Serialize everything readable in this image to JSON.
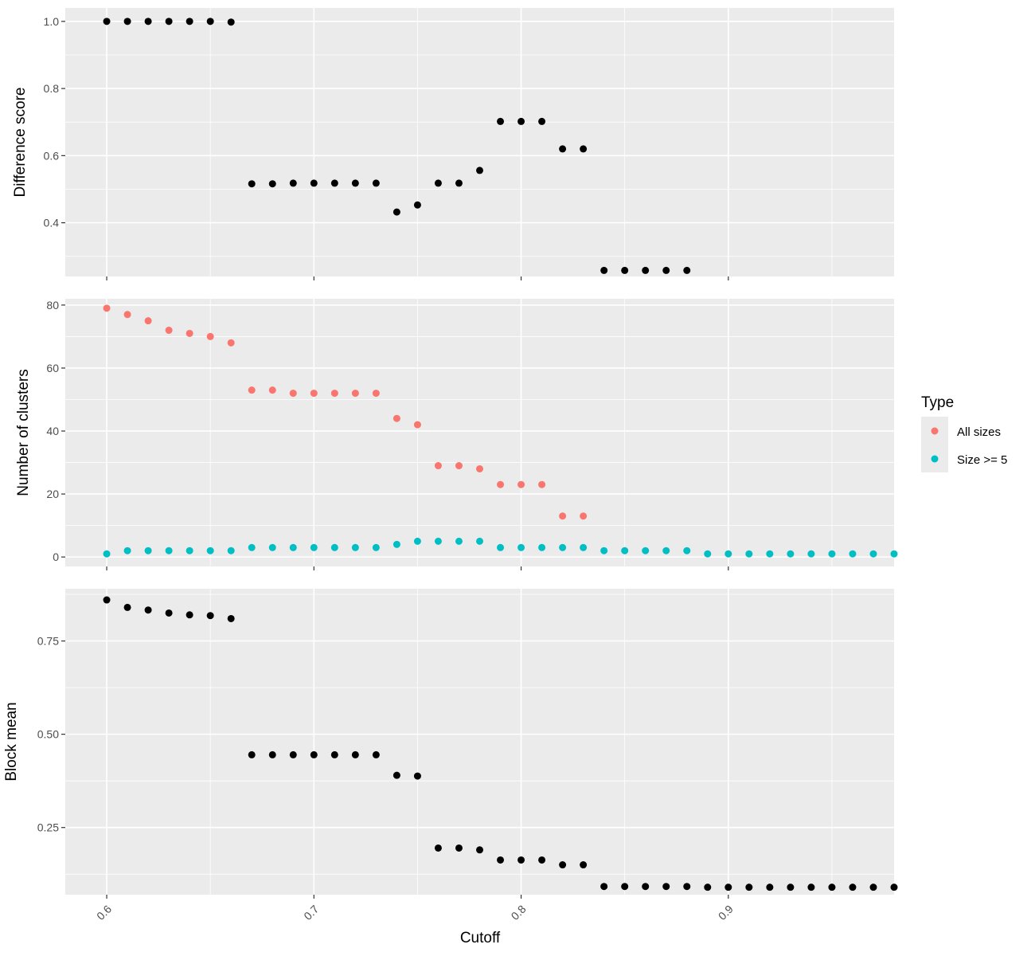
{
  "chart_data": {
    "type": "scatter",
    "xlabel": "Cutoff",
    "x_ticks": [
      0.6,
      0.7,
      0.8,
      0.9
    ],
    "x_tick_labels": [
      "0.6",
      "0.7",
      "0.8",
      "0.9"
    ],
    "xlim": [
      0.58,
      0.98
    ],
    "legend": {
      "title": "Type",
      "placement": "right",
      "entries": [
        {
          "label": "All sizes",
          "color": "#F8766D"
        },
        {
          "label": "Size >= 5",
          "color": "#00BFC4"
        }
      ]
    },
    "colors": {
      "panel_background": "#EBEBEB",
      "grid": "#FFFFFF",
      "point_default": "#000000"
    },
    "panels": [
      {
        "ylabel": "Difference score",
        "ylim": [
          0.24,
          1.04
        ],
        "y_ticks": [
          0.4,
          0.6,
          0.8,
          1.0
        ],
        "y_tick_labels": [
          "0.4",
          "0.6",
          "0.8",
          "1.0"
        ],
        "series": [
          {
            "color": "#000000",
            "x": [
              0.6,
              0.61,
              0.62,
              0.63,
              0.64,
              0.65,
              0.66,
              0.67,
              0.68,
              0.69,
              0.7,
              0.71,
              0.72,
              0.73,
              0.74,
              0.75,
              0.76,
              0.77,
              0.78,
              0.79,
              0.8,
              0.81,
              0.82,
              0.83,
              0.84,
              0.85,
              0.86,
              0.87,
              0.88
            ],
            "y": [
              1.0,
              1.0,
              1.0,
              1.0,
              1.0,
              1.0,
              0.998,
              0.516,
              0.516,
              0.518,
              0.518,
              0.518,
              0.518,
              0.518,
              0.432,
              0.453,
              0.518,
              0.518,
              0.556,
              0.702,
              0.702,
              0.702,
              0.62,
              0.62,
              0.258,
              0.258,
              0.258,
              0.258,
              0.258
            ]
          }
        ]
      },
      {
        "ylabel": "Number of clusters",
        "ylim": [
          -3,
          82
        ],
        "y_ticks": [
          0,
          20,
          40,
          60,
          80
        ],
        "y_tick_labels": [
          "0",
          "20",
          "40",
          "60",
          "80"
        ],
        "series": [
          {
            "name": "All sizes",
            "color": "#F8766D",
            "x": [
              0.6,
              0.61,
              0.62,
              0.63,
              0.64,
              0.65,
              0.66,
              0.67,
              0.68,
              0.69,
              0.7,
              0.71,
              0.72,
              0.73,
              0.74,
              0.75,
              0.76,
              0.77,
              0.78,
              0.79,
              0.8,
              0.81,
              0.82,
              0.83
            ],
            "y": [
              79,
              77,
              75,
              72,
              71,
              70,
              68,
              53,
              53,
              52,
              52,
              52,
              52,
              52,
              44,
              42,
              29,
              29,
              28,
              23,
              23,
              23,
              13,
              13
            ]
          },
          {
            "name": "Size >= 5",
            "color": "#00BFC4",
            "x": [
              0.6,
              0.61,
              0.62,
              0.63,
              0.64,
              0.65,
              0.66,
              0.67,
              0.68,
              0.69,
              0.7,
              0.71,
              0.72,
              0.73,
              0.74,
              0.75,
              0.76,
              0.77,
              0.78,
              0.79,
              0.8,
              0.81,
              0.82,
              0.83,
              0.84,
              0.85,
              0.86,
              0.87,
              0.88,
              0.89,
              0.9,
              0.91,
              0.92,
              0.93,
              0.94,
              0.95,
              0.96,
              0.97,
              0.98
            ],
            "y": [
              1,
              2,
              2,
              2,
              2,
              2,
              2,
              3,
              3,
              3,
              3,
              3,
              3,
              3,
              4,
              5,
              5,
              5,
              5,
              3,
              3,
              3,
              3,
              3,
              2,
              2,
              2,
              2,
              2,
              1,
              1,
              1,
              1,
              1,
              1,
              1,
              1,
              1,
              1
            ]
          }
        ]
      },
      {
        "ylabel": "Block mean",
        "ylim": [
          0.07,
          0.89
        ],
        "y_ticks": [
          0.25,
          0.5,
          0.75
        ],
        "y_tick_labels": [
          "0.25",
          "0.50",
          "0.75"
        ],
        "series": [
          {
            "color": "#000000",
            "x": [
              0.6,
              0.61,
              0.62,
              0.63,
              0.64,
              0.65,
              0.66,
              0.67,
              0.68,
              0.69,
              0.7,
              0.71,
              0.72,
              0.73,
              0.74,
              0.75,
              0.76,
              0.77,
              0.78,
              0.79,
              0.8,
              0.81,
              0.82,
              0.83,
              0.84,
              0.85,
              0.86,
              0.87,
              0.88,
              0.89,
              0.9,
              0.91,
              0.92,
              0.93,
              0.94,
              0.95,
              0.96,
              0.97,
              0.98
            ],
            "y": [
              0.86,
              0.84,
              0.833,
              0.825,
              0.82,
              0.818,
              0.81,
              0.445,
              0.445,
              0.445,
              0.445,
              0.445,
              0.445,
              0.445,
              0.39,
              0.388,
              0.195,
              0.195,
              0.19,
              0.163,
              0.163,
              0.163,
              0.15,
              0.15,
              0.092,
              0.092,
              0.092,
              0.092,
              0.092,
              0.09,
              0.09,
              0.09,
              0.09,
              0.09,
              0.09,
              0.09,
              0.09,
              0.09,
              0.09
            ]
          }
        ]
      }
    ]
  }
}
